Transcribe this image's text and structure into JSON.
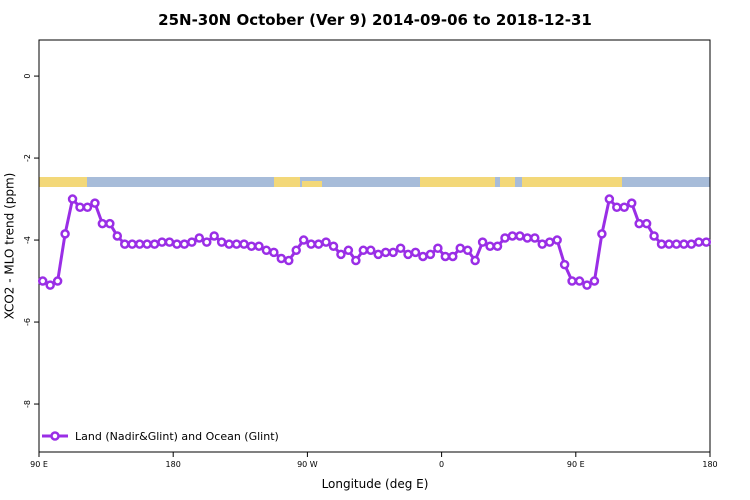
{
  "chart_data": {
    "type": "line",
    "title": "25N-30N October (Ver 9)   2014-09-06 to 2018-12-31",
    "x_label": "Longitude (deg E)",
    "y_label": "XCO2 - MLO trend (ppm)",
    "x": [
      92.5,
      97.5,
      102.5,
      107.5,
      112.5,
      117.5,
      122.5,
      127.5,
      132.5,
      137.5,
      142.5,
      147.5,
      152.5,
      157.5,
      162.5,
      167.5,
      172.5,
      177.5,
      182.5,
      187.5,
      192.5,
      197.5,
      202.5,
      207.5,
      212.5,
      217.5,
      222.5,
      227.5,
      232.5,
      237.5,
      242.5,
      247.5,
      252.5,
      257.5,
      262.5,
      267.5,
      272.5,
      277.5,
      282.5,
      287.5,
      292.5,
      297.5,
      302.5,
      307.5,
      312.5,
      317.5,
      322.5,
      327.5,
      332.5,
      337.5,
      342.5,
      347.5,
      352.5,
      357.5,
      362.5,
      367.5,
      372.5,
      377.5,
      382.5,
      387.5,
      392.5,
      397.5,
      402.5,
      407.5,
      412.5,
      417.5,
      422.5,
      427.5,
      432.5,
      437.5,
      442.5,
      447.5,
      452.5,
      457.5,
      462.5,
      467.5,
      472.5,
      477.5,
      482.5,
      487.5,
      492.5,
      497.5,
      502.5,
      507.5,
      512.5,
      517.5,
      522.5,
      527.5,
      532.5,
      537.5
    ],
    "series": [
      {
        "name": "Land (Nadir&Glint) and Ocean (Glint)",
        "color": "#9a2ee6",
        "values": [
          -5.0,
          -5.1,
          -5.0,
          -3.85,
          -3.0,
          -3.2,
          -3.2,
          -3.1,
          -3.6,
          -3.6,
          -3.9,
          -4.1,
          -4.1,
          -4.1,
          -4.1,
          -4.1,
          -4.05,
          -4.05,
          -4.1,
          -4.1,
          -4.05,
          -3.95,
          -4.05,
          -3.9,
          -4.05,
          -4.1,
          -4.1,
          -4.1,
          -4.15,
          -4.15,
          -4.25,
          -4.3,
          -4.45,
          -4.5,
          -4.25,
          -4.0,
          -4.1,
          -4.1,
          -4.05,
          -4.15,
          -4.35,
          -4.25,
          -4.5,
          -4.25,
          -4.25,
          -4.35,
          -4.3,
          -4.3,
          -4.2,
          -4.35,
          -4.3,
          -4.4,
          -4.35,
          -4.2,
          -4.4,
          -4.4,
          -4.2,
          -4.25,
          -4.5,
          -4.05,
          -4.15,
          -4.15,
          -3.95,
          -3.9,
          -3.9,
          -3.95,
          -3.95,
          -4.1,
          -4.05,
          -4.0,
          -4.6,
          -5.0,
          -5.0,
          -5.1,
          -5.0,
          -3.85,
          -3.0,
          -3.2,
          -3.2,
          -3.1,
          -3.6,
          -3.6,
          -3.9,
          -4.1,
          -4.1,
          -4.1,
          -4.1,
          -4.1,
          -4.05,
          -4.05
        ]
      }
    ],
    "xlim": [
      90,
      540
    ],
    "xticks": [
      {
        "value": 90,
        "label": "90 E"
      },
      180,
      {
        "value": 270,
        "label": "90 W"
      },
      {
        "value": 360,
        "label": "0"
      },
      {
        "value": 450,
        "label": "90 E"
      },
      {
        "value": 540,
        "label": "180"
      }
    ],
    "ylim": [
      -9.17,
      0.88
    ],
    "yticks": [
      0,
      -2,
      -4,
      -6,
      -8
    ],
    "legend": "bottom-left"
  }
}
